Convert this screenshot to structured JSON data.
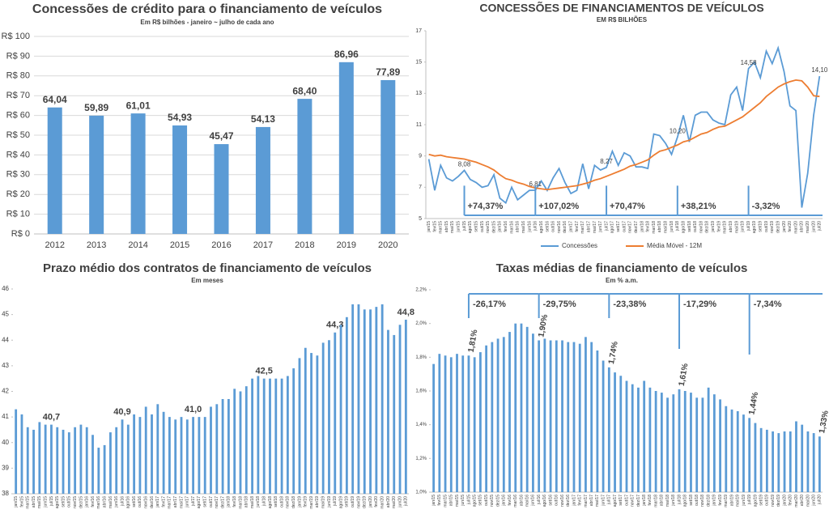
{
  "chart_data": [
    {
      "type": "bar",
      "title": "Concessões de crédito para o financiamento de veículos",
      "subtitle": "Em R$ bilhões - janeiro ~ julho de cada ano",
      "categories": [
        "2012",
        "2013",
        "2014",
        "2015",
        "2016",
        "2017",
        "2018",
        "2019",
        "2020"
      ],
      "values": [
        64.04,
        59.89,
        61.01,
        54.93,
        45.47,
        54.13,
        68.4,
        86.96,
        77.89
      ],
      "value_labels": [
        "64,04",
        "59,89",
        "61,01",
        "54,93",
        "45,47",
        "54,13",
        "68,40",
        "86,96",
        "77,89"
      ],
      "color": "#5b9bd5",
      "ylim": [
        0,
        100
      ],
      "yticks": [
        {
          "value": 0,
          "label": "R$ 0"
        },
        {
          "value": 10,
          "label": "R$ 10"
        },
        {
          "value": 20,
          "label": "R$ 20"
        },
        {
          "value": 30,
          "label": "R$ 30"
        },
        {
          "value": 40,
          "label": "R$ 40"
        },
        {
          "value": 50,
          "label": "R$ 50"
        },
        {
          "value": 60,
          "label": "R$ 60"
        },
        {
          "value": 70,
          "label": "R$ 70"
        },
        {
          "value": 80,
          "label": "R$ 80"
        },
        {
          "value": 90,
          "label": "R$ 90"
        },
        {
          "value": 100,
          "label": "R$ 100"
        }
      ],
      "grid": true
    },
    {
      "type": "line",
      "title": "CONCESSÕES DE FINANCIAMENTOS DE VEÍCULOS",
      "subtitle": "EM R$ BILHÕES",
      "categories": [
        "jan/15",
        "fev/15",
        "mar/15",
        "abr/15",
        "mai/15",
        "jun/15",
        "jul/15",
        "ago/15",
        "set/15",
        "out/15",
        "nov/15",
        "dez/15",
        "jan/16",
        "fev/16",
        "mar/16",
        "abr/16",
        "mai/16",
        "jun/16",
        "jul/16",
        "ago/16",
        "set/16",
        "out/16",
        "nov/16",
        "dez/16",
        "jan/17",
        "fev/17",
        "mar/17",
        "abr/17",
        "mai/17",
        "jun/17",
        "jul/17",
        "ago/17",
        "set/17",
        "out/17",
        "nov/17",
        "dez/17",
        "jan/18",
        "fev/18",
        "mar/18",
        "abr/18",
        "mai/18",
        "jun/18",
        "jul/18",
        "ago/18",
        "set/18",
        "out/18",
        "nov/18",
        "dez/18",
        "jan/19",
        "fev/19",
        "mar/19",
        "abr/19",
        "mai/19",
        "jun/19",
        "jul/19",
        "ago/19",
        "set/19",
        "out/19",
        "nov/19",
        "dez/19",
        "jan/20",
        "fev/20",
        "mar/20",
        "abr/20",
        "mai/20",
        "jun/20",
        "jul/20"
      ],
      "series": [
        {
          "name": "Concessões",
          "color": "#5b9bd5",
          "values": [
            8.8,
            6.8,
            8.4,
            7.6,
            7.4,
            7.7,
            8.08,
            7.5,
            7.3,
            7.0,
            7.1,
            7.8,
            6.3,
            6.0,
            7.0,
            6.2,
            6.5,
            6.8,
            6.81,
            7.4,
            6.8,
            7.6,
            8.2,
            7.3,
            6.6,
            6.8,
            8.5,
            6.9,
            8.4,
            8.1,
            8.27,
            9.3,
            8.4,
            9.2,
            9.0,
            8.3,
            8.3,
            8.2,
            10.4,
            10.3,
            9.8,
            9.1,
            10.2,
            11.6,
            9.9,
            11.6,
            11.8,
            11.8,
            11.3,
            11.1,
            11.0,
            12.9,
            13.4,
            11.9,
            14.58,
            15.0,
            14.0,
            15.7,
            14.9,
            15.9,
            14.4,
            12.2,
            11.9,
            5.7,
            7.9,
            11.6,
            14.1
          ],
          "value_labels": [
            null,
            null,
            null,
            null,
            null,
            null,
            "8,08",
            null,
            null,
            null,
            null,
            null,
            null,
            null,
            null,
            null,
            null,
            null,
            "6,81",
            null,
            null,
            null,
            null,
            null,
            null,
            null,
            null,
            null,
            null,
            null,
            "8,27",
            null,
            null,
            null,
            null,
            null,
            null,
            null,
            null,
            null,
            null,
            null,
            "10,20",
            null,
            null,
            null,
            null,
            null,
            null,
            null,
            null,
            null,
            null,
            null,
            "14,58",
            null,
            null,
            null,
            null,
            null,
            null,
            null,
            null,
            null,
            null,
            null,
            "14,10"
          ]
        },
        {
          "name": "Média Móvel - 12M",
          "color": "#ed7d31",
          "values": [
            9.1,
            9.0,
            9.05,
            8.95,
            8.9,
            8.85,
            8.8,
            8.7,
            8.6,
            8.45,
            8.3,
            8.1,
            7.8,
            7.55,
            7.45,
            7.3,
            7.2,
            7.05,
            6.95,
            6.9,
            6.85,
            6.9,
            6.95,
            7.0,
            7.05,
            7.1,
            7.2,
            7.3,
            7.45,
            7.55,
            7.7,
            7.85,
            8.0,
            8.15,
            8.35,
            8.45,
            8.6,
            8.75,
            9.05,
            9.3,
            9.4,
            9.55,
            9.7,
            9.9,
            10.0,
            10.2,
            10.4,
            10.5,
            10.7,
            10.85,
            10.9,
            11.1,
            11.3,
            11.5,
            11.8,
            12.1,
            12.4,
            12.8,
            13.1,
            13.4,
            13.6,
            13.75,
            13.85,
            13.8,
            13.4,
            12.85,
            12.8
          ]
        }
      ],
      "annotations": [
        "+74,37%",
        "+107,02%",
        "+70,47%",
        "+38,21%",
        "-3,32%"
      ],
      "ylim": [
        5,
        17
      ],
      "yticks": [
        5,
        7,
        9,
        11,
        13,
        15,
        17
      ],
      "legend": "bottom"
    },
    {
      "type": "bar",
      "title": "Prazo médio dos contratos de financiamento de veículos",
      "subtitle": "Em meses",
      "categories": [
        "jan/15",
        "fev/15",
        "mar/15",
        "abr/15",
        "mai/15",
        "jun/15",
        "jul/15",
        "ago/15",
        "set/15",
        "out/15",
        "nov/15",
        "dez/15",
        "jan/16",
        "fev/16",
        "mar/16",
        "abr/16",
        "mai/16",
        "jun/16",
        "jul/16",
        "ago/16",
        "set/16",
        "out/16",
        "nov/16",
        "dez/16",
        "jan/17",
        "fev/17",
        "mar/17",
        "abr/17",
        "mai/17",
        "jun/17",
        "jul/17",
        "ago/17",
        "set/17",
        "out/17",
        "nov/17",
        "dez/17",
        "jan/18",
        "fev/18",
        "mar/18",
        "abr/18",
        "mai/18",
        "jun/18",
        "jul/18",
        "ago/18",
        "set/18",
        "out/18",
        "nov/18",
        "dez/18",
        "jan/19",
        "fev/19",
        "mar/19",
        "abr/19",
        "mai/19",
        "jun/19",
        "jul/19",
        "ago/19",
        "set/19",
        "out/19",
        "nov/19",
        "dez/19",
        "jan/20",
        "fev/20",
        "mar/20",
        "abr/20",
        "mai/20",
        "jun/20",
        "jul/20"
      ],
      "values": [
        41.3,
        41.1,
        40.6,
        40.5,
        40.8,
        40.7,
        40.7,
        40.6,
        40.5,
        40.4,
        40.6,
        40.7,
        40.6,
        40.3,
        39.8,
        39.9,
        40.4,
        40.6,
        40.9,
        40.7,
        41.1,
        41.0,
        41.4,
        41.1,
        41.5,
        41.2,
        41.0,
        40.9,
        41.0,
        40.9,
        41.0,
        41.0,
        41.0,
        41.4,
        41.5,
        41.7,
        41.7,
        42.1,
        42.0,
        42.2,
        42.5,
        42.6,
        42.5,
        42.5,
        42.5,
        42.5,
        42.6,
        42.9,
        43.3,
        43.7,
        43.5,
        43.4,
        43.9,
        44.0,
        44.3,
        44.6,
        44.9,
        45.4,
        45.4,
        45.2,
        45.2,
        45.3,
        45.4,
        44.4,
        44.2,
        44.6,
        44.8
      ],
      "value_labels": [
        null,
        null,
        null,
        null,
        null,
        null,
        "40,7",
        null,
        null,
        null,
        null,
        null,
        null,
        null,
        null,
        null,
        null,
        null,
        "40,9",
        null,
        null,
        null,
        null,
        null,
        null,
        null,
        null,
        null,
        null,
        null,
        "41,0",
        null,
        null,
        null,
        null,
        null,
        null,
        null,
        null,
        null,
        null,
        null,
        "42,5",
        null,
        null,
        null,
        null,
        null,
        null,
        null,
        null,
        null,
        null,
        null,
        "44,3",
        null,
        null,
        null,
        null,
        null,
        null,
        null,
        null,
        null,
        null,
        null,
        "44,8"
      ],
      "color": "#5b9bd5",
      "ylim": [
        38,
        46
      ],
      "yticks": [
        38,
        39,
        40,
        41,
        42,
        43,
        44,
        45,
        46
      ],
      "grid": false
    },
    {
      "type": "bar",
      "title": "Taxas médias de financiamento de veículos",
      "subtitle": "Em % a.m.",
      "categories": [
        "jan/15",
        "fev/15",
        "mar/15",
        "abr/15",
        "mai/15",
        "jun/15",
        "jul/15",
        "ago/15",
        "set/15",
        "out/15",
        "nov/15",
        "dez/15",
        "jan/16",
        "fev/16",
        "mar/16",
        "abr/16",
        "mai/16",
        "jun/16",
        "jul/16",
        "ago/16",
        "set/16",
        "out/16",
        "nov/16",
        "dez/16",
        "jan/17",
        "fev/17",
        "mar/17",
        "abr/17",
        "mai/17",
        "jun/17",
        "jul/17",
        "ago/17",
        "set/17",
        "out/17",
        "nov/17",
        "dez/17",
        "jan/18",
        "fev/18",
        "mar/18",
        "abr/18",
        "mai/18",
        "jun/18",
        "jul/18",
        "ago/18",
        "set/18",
        "out/18",
        "nov/18",
        "dez/18",
        "jan/19",
        "fev/19",
        "mar/19",
        "abr/19",
        "mai/19",
        "jun/19",
        "jul/19",
        "ago/19",
        "set/19",
        "out/19",
        "nov/19",
        "dez/19",
        "jan/20",
        "fev/20",
        "mar/20",
        "abr/20",
        "mai/20",
        "jun/20",
        "jul/20"
      ],
      "values": [
        1.76,
        1.82,
        1.81,
        1.8,
        1.82,
        1.81,
        1.81,
        1.8,
        1.83,
        1.87,
        1.89,
        1.91,
        1.92,
        1.95,
        2.0,
        2.0,
        1.98,
        1.94,
        1.9,
        1.91,
        1.9,
        1.9,
        1.9,
        1.89,
        1.89,
        1.88,
        1.92,
        1.89,
        1.84,
        1.78,
        1.74,
        1.71,
        1.69,
        1.66,
        1.64,
        1.62,
        1.66,
        1.62,
        1.6,
        1.59,
        1.56,
        1.58,
        1.61,
        1.6,
        1.59,
        1.56,
        1.56,
        1.62,
        1.58,
        1.55,
        1.51,
        1.49,
        1.48,
        1.46,
        1.44,
        1.41,
        1.38,
        1.37,
        1.36,
        1.35,
        1.36,
        1.36,
        1.42,
        1.4,
        1.36,
        1.35,
        1.33
      ],
      "value_labels": [
        null,
        null,
        null,
        null,
        null,
        null,
        "1,81%",
        null,
        null,
        null,
        null,
        null,
        null,
        null,
        null,
        null,
        null,
        null,
        "1,90%",
        null,
        null,
        null,
        null,
        null,
        null,
        null,
        null,
        null,
        null,
        null,
        "1,74%",
        null,
        null,
        null,
        null,
        null,
        null,
        null,
        null,
        null,
        null,
        null,
        "1,61%",
        null,
        null,
        null,
        null,
        null,
        null,
        null,
        null,
        null,
        null,
        null,
        "1,44%",
        null,
        null,
        null,
        null,
        null,
        null,
        null,
        null,
        null,
        null,
        null,
        "1,33%"
      ],
      "annotations": [
        "-26,17%",
        "-29,75%",
        "-23,38%",
        "-17,29%",
        "-7,34%"
      ],
      "color": "#5b9bd5",
      "ylim": [
        1.0,
        2.2
      ],
      "yticks": [
        {
          "value": 1.0,
          "label": "1,0%"
        },
        {
          "value": 1.2,
          "label": "1,2%"
        },
        {
          "value": 1.4,
          "label": "1,4%"
        },
        {
          "value": 1.6,
          "label": "1,6%"
        },
        {
          "value": 1.8,
          "label": "1,8%"
        },
        {
          "value": 2.0,
          "label": "2,0%"
        },
        {
          "value": 2.2,
          "label": "2,2%"
        }
      ],
      "grid": false
    }
  ]
}
